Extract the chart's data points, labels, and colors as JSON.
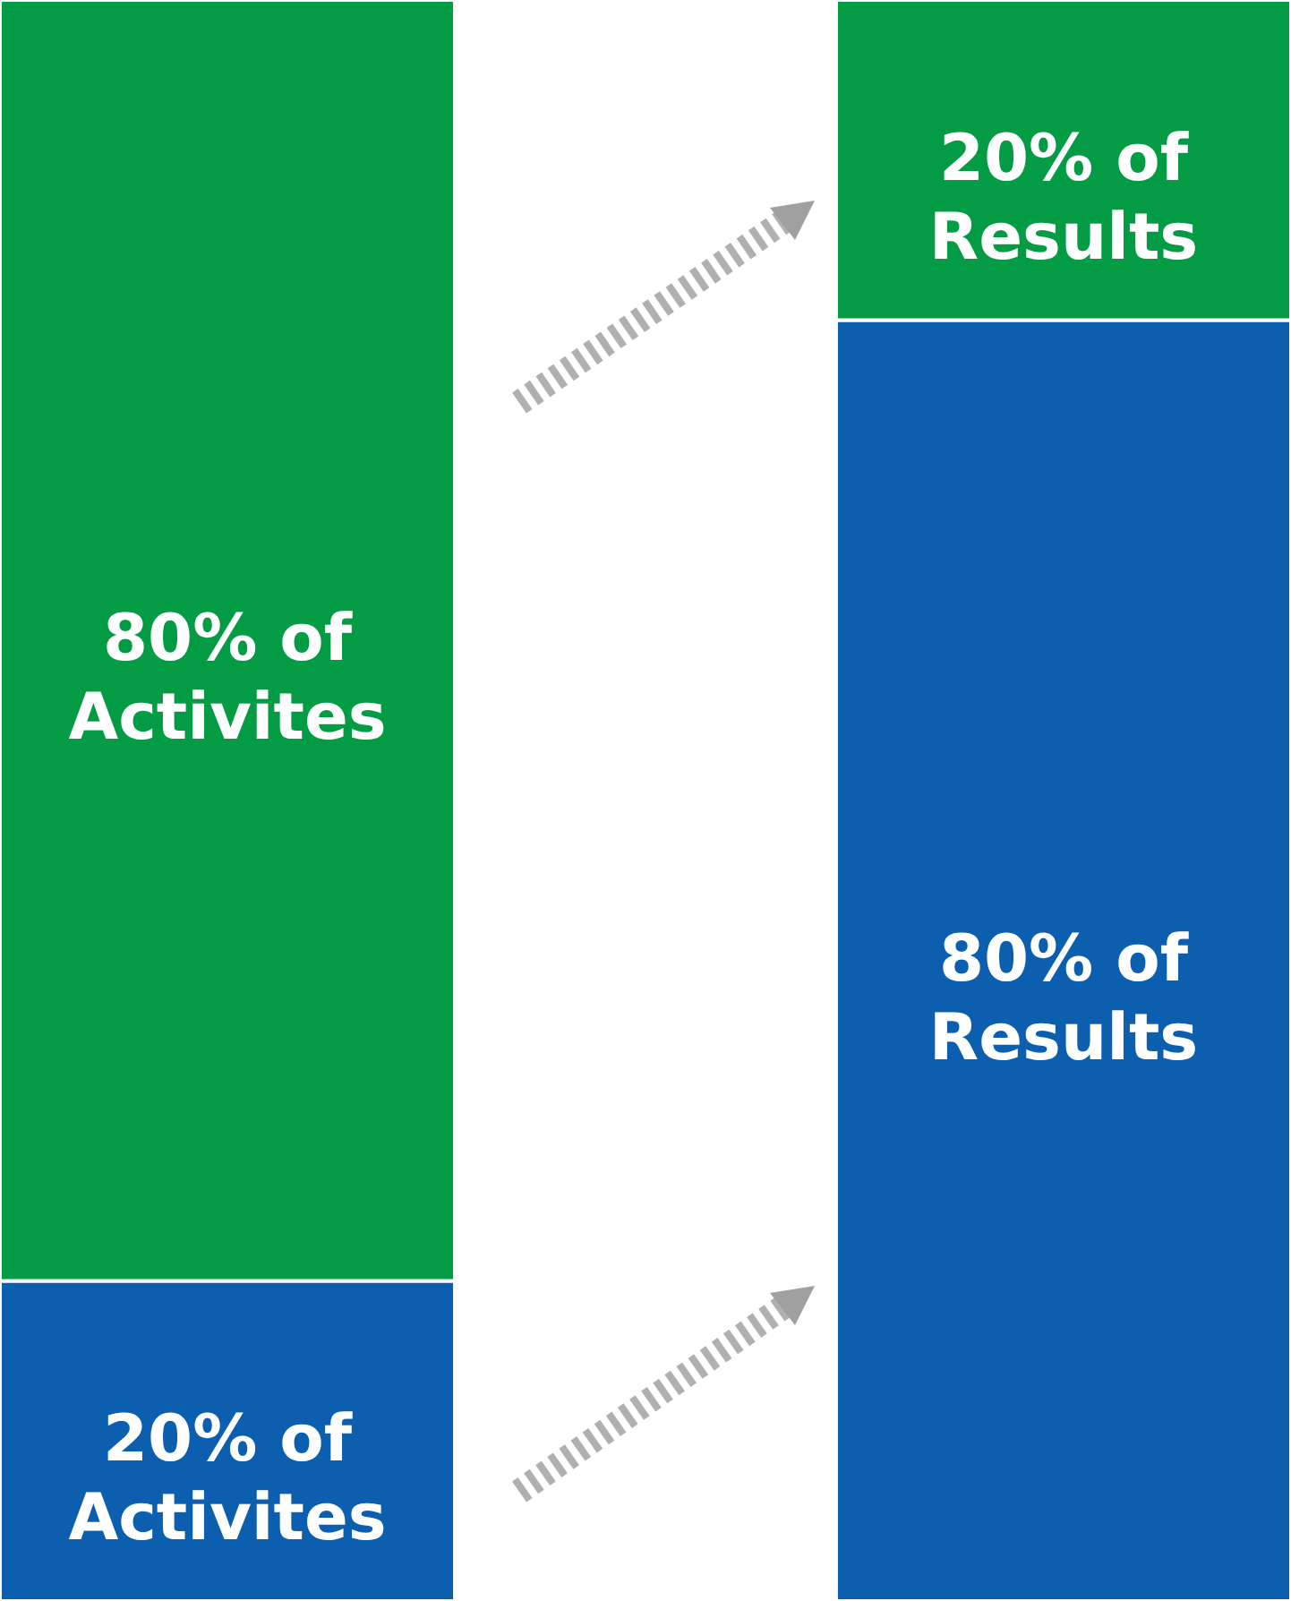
{
  "chart_data": {
    "type": "bar",
    "categories": [
      null,
      null
    ],
    "stacked": true,
    "series": [
      {
        "color": "#0b5fae",
        "values": [
          20,
          80
        ],
        "value_labels": [
          "20% of\nActivites",
          "80% of\nResults"
        ]
      },
      {
        "color": "#049b45",
        "values": [
          80,
          20
        ],
        "value_labels": [
          "80% of\nActivites",
          "20% of\nResults"
        ]
      }
    ]
  }
}
